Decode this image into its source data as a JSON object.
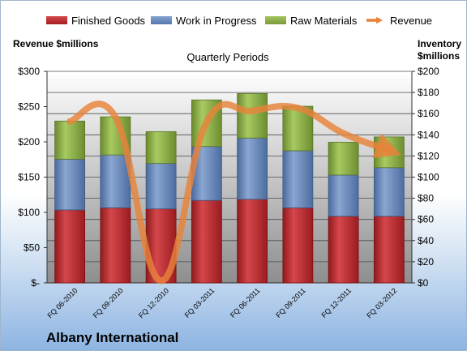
{
  "company": "Albany International",
  "colors": {
    "finished_goods": "#c0282d",
    "work_in_progress": "#6a8bbf",
    "raw_materials": "#8cb04a",
    "revenue": "#e8823a"
  },
  "chart_data": {
    "type": "bar",
    "stacked": true,
    "title": "Quarterly Periods",
    "ylabel": "Revenue $millions",
    "y2label": "Inventory $millions",
    "ylim": [
      0,
      300
    ],
    "y2lim": [
      0,
      200
    ],
    "yticks": [
      "$-",
      "$50",
      "$100",
      "$150",
      "$200",
      "$250",
      "$300"
    ],
    "y2ticks": [
      "$0",
      "$20",
      "$40",
      "$60",
      "$80",
      "$100",
      "$120",
      "$140",
      "$160",
      "$180",
      "$200"
    ],
    "categories": [
      "FQ 06-2010",
      "FQ 09-2010",
      "FQ 12-2010",
      "FQ 03-2011",
      "FQ 06-2011",
      "FQ 09-2011",
      "FQ 12-2011",
      "FQ 03-2012"
    ],
    "series": [
      {
        "name": "Finished Goods",
        "axis": "right",
        "values": [
          69,
          71,
          70,
          78,
          79,
          71,
          63,
          63
        ]
      },
      {
        "name": "Work in Progress",
        "axis": "right",
        "values": [
          48,
          50,
          43,
          51,
          58,
          54,
          39,
          46
        ]
      },
      {
        "name": "Raw Materials",
        "axis": "right",
        "values": [
          36,
          36,
          30,
          44,
          42,
          42,
          31,
          29
        ]
      },
      {
        "name": "Revenue",
        "axis": "left",
        "type": "line",
        "values": [
          229,
          235,
          3,
          228,
          244,
          248,
          212,
          188
        ]
      }
    ],
    "legend_position": "top",
    "grid": true
  }
}
